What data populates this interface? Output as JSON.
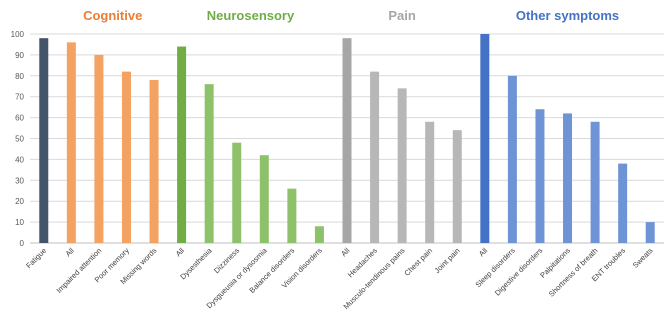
{
  "chart_data": {
    "type": "bar",
    "title": "",
    "xlabel": "",
    "ylabel": "",
    "ylim": [
      0,
      100
    ],
    "yticks": [
      0,
      10,
      20,
      30,
      40,
      50,
      60,
      70,
      80,
      90,
      100
    ],
    "grid": true,
    "legend": "none",
    "groups": [
      {
        "name": "",
        "color": "#44546a",
        "title_color": "",
        "categories": [
          "Fatigue"
        ],
        "values": [
          98
        ]
      },
      {
        "name": "Cognitive",
        "color": "#f4a261",
        "title_color": "#ed7d31",
        "categories": [
          "All",
          "Impaired attention",
          "Poor memory",
          "Missing words"
        ],
        "values": [
          96,
          90,
          82,
          78
        ]
      },
      {
        "name": "Neurosensory",
        "color": "#8dc26b",
        "title_color": "#70ad47",
        "first_color": "#70ad47",
        "categories": [
          "All",
          "Dysesthesia",
          "Dizziness",
          "Dysgueusia or dysosmia",
          "Balance disorders",
          "Vision disorders"
        ],
        "values": [
          94,
          76,
          48,
          42,
          26,
          8
        ]
      },
      {
        "name": "Pain",
        "color": "#b7b7b7",
        "title_color": "#a6a6a6",
        "first_color": "#a6a6a6",
        "categories": [
          "All",
          "Headaches",
          "Musculo-tendinous pains",
          "Chest pain",
          "Joint pain"
        ],
        "values": [
          98,
          82,
          74,
          58,
          54
        ]
      },
      {
        "name": "Other symptoms",
        "color": "#6f94d6",
        "title_color": "#4472c4",
        "first_color": "#4472c4",
        "categories": [
          "All",
          "Sleep disorders",
          "Digestive disorders",
          "Palpitations",
          "Shortness of breath",
          "ENT troubles",
          "Sweats"
        ],
        "values": [
          100,
          80,
          64,
          62,
          58,
          38,
          10
        ]
      }
    ]
  }
}
